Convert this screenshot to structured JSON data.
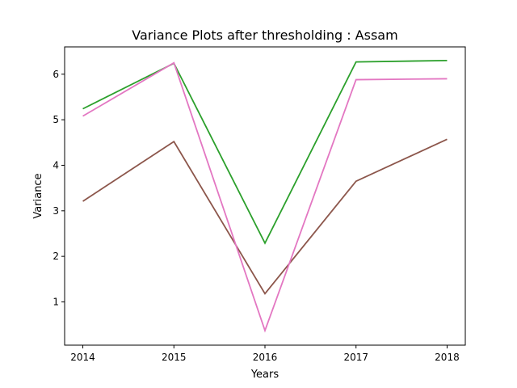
{
  "chart_data": {
    "type": "line",
    "title": "Variance Plots after thresholding : Assam",
    "xlabel": "Years",
    "ylabel": "Variance",
    "x": [
      "2014",
      "2015",
      "2016",
      "2017",
      "2018"
    ],
    "xlim": [
      2013.8,
      2018.2
    ],
    "ylim": [
      0.05,
      6.6
    ],
    "yticks": [
      1,
      2,
      3,
      4,
      5,
      6
    ],
    "grid": false,
    "series": [
      {
        "color": "#2ca02c",
        "values": [
          5.24,
          6.24,
          2.29,
          6.27,
          6.3
        ]
      },
      {
        "color": "#8c564b",
        "values": [
          3.21,
          4.52,
          1.18,
          3.65,
          4.57
        ]
      },
      {
        "color": "#e377c2",
        "values": [
          5.08,
          6.25,
          0.37,
          5.88,
          5.9
        ]
      }
    ]
  }
}
